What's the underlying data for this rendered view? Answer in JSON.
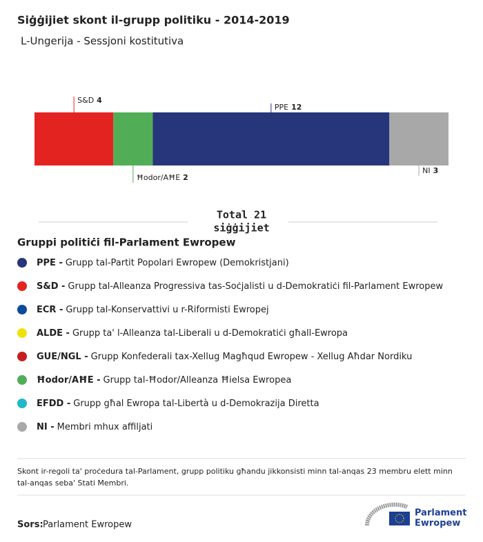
{
  "chart_data": {
    "type": "stacked_bar",
    "title": "Siġġijiet skont il-grupp politiku - 2014-2019",
    "subtitle": "L-Ungerija - Sessjoni kostitutiva",
    "series": [
      {
        "name": "S&D",
        "color": "#e32320",
        "values": [
          4
        ],
        "label_side": "above"
      },
      {
        "name": "Ħodor/AĦE",
        "color": "#52ae56",
        "values": [
          2
        ],
        "label_side": "below"
      },
      {
        "name": "PPE",
        "color": "#27357a",
        "values": [
          12
        ],
        "label_side": "above"
      },
      {
        "name": "NI",
        "color": "#a8a8a8",
        "values": [
          3
        ],
        "label_side": "below"
      }
    ],
    "total_label": [
      "Total 21",
      "siġġijiet"
    ],
    "legend_title": "Gruppi politiċi fil-Parlament Ewropew",
    "legend": [
      {
        "abbr": "PPE -",
        "text": "Grupp tal-Partit Popolari Ewropew (Demokristjani)",
        "color": "#27357a"
      },
      {
        "abbr": "S&D -",
        "text": "Grupp tal-Alleanza Progressiva tas-Soċjalisti u d-Demokratiċi fil-Parlament Ewropew",
        "color": "#e32320"
      },
      {
        "abbr": "ECR -",
        "text": "Grupp tal-Konservattivi u r-Riformisti Ewropej",
        "color": "#0d4a9c"
      },
      {
        "abbr": "ALDE -",
        "text": "Grupp ta' l-Alleanza tal-Liberali u d-Demokratiċi għall-Ewropa",
        "color": "#f0e10c"
      },
      {
        "abbr": "GUE/NGL -",
        "text": "Grupp Konfederali tax-Xellug Magħqud Ewropew - Xellug Aħdar Nordiku",
        "color": "#c4201f"
      },
      {
        "abbr": "Ħodor/AĦE -",
        "text": "Grupp tal-Ħodor/Alleanza Ħielsa Ewropea",
        "color": "#52ae56"
      },
      {
        "abbr": "EFDD -",
        "text": "Grupp għal Ewropa tal-Libertà u d-Demokrazija Diretta",
        "color": "#22b8c8"
      },
      {
        "abbr": "NI -",
        "text": "Membri mhux affiljati",
        "color": "#a8a8a8"
      }
    ]
  },
  "footnote": "Skont ir-regoli ta' proċedura tal-Parlament, grupp politiku għandu jikkonsisti minn tal-anqas 23 membru elett minn tal-anqas seba' Stati Membri.",
  "source_label": "Sors:",
  "source": "Parlament Ewropew",
  "logo_text": [
    "Parlament",
    "Ewropew"
  ]
}
